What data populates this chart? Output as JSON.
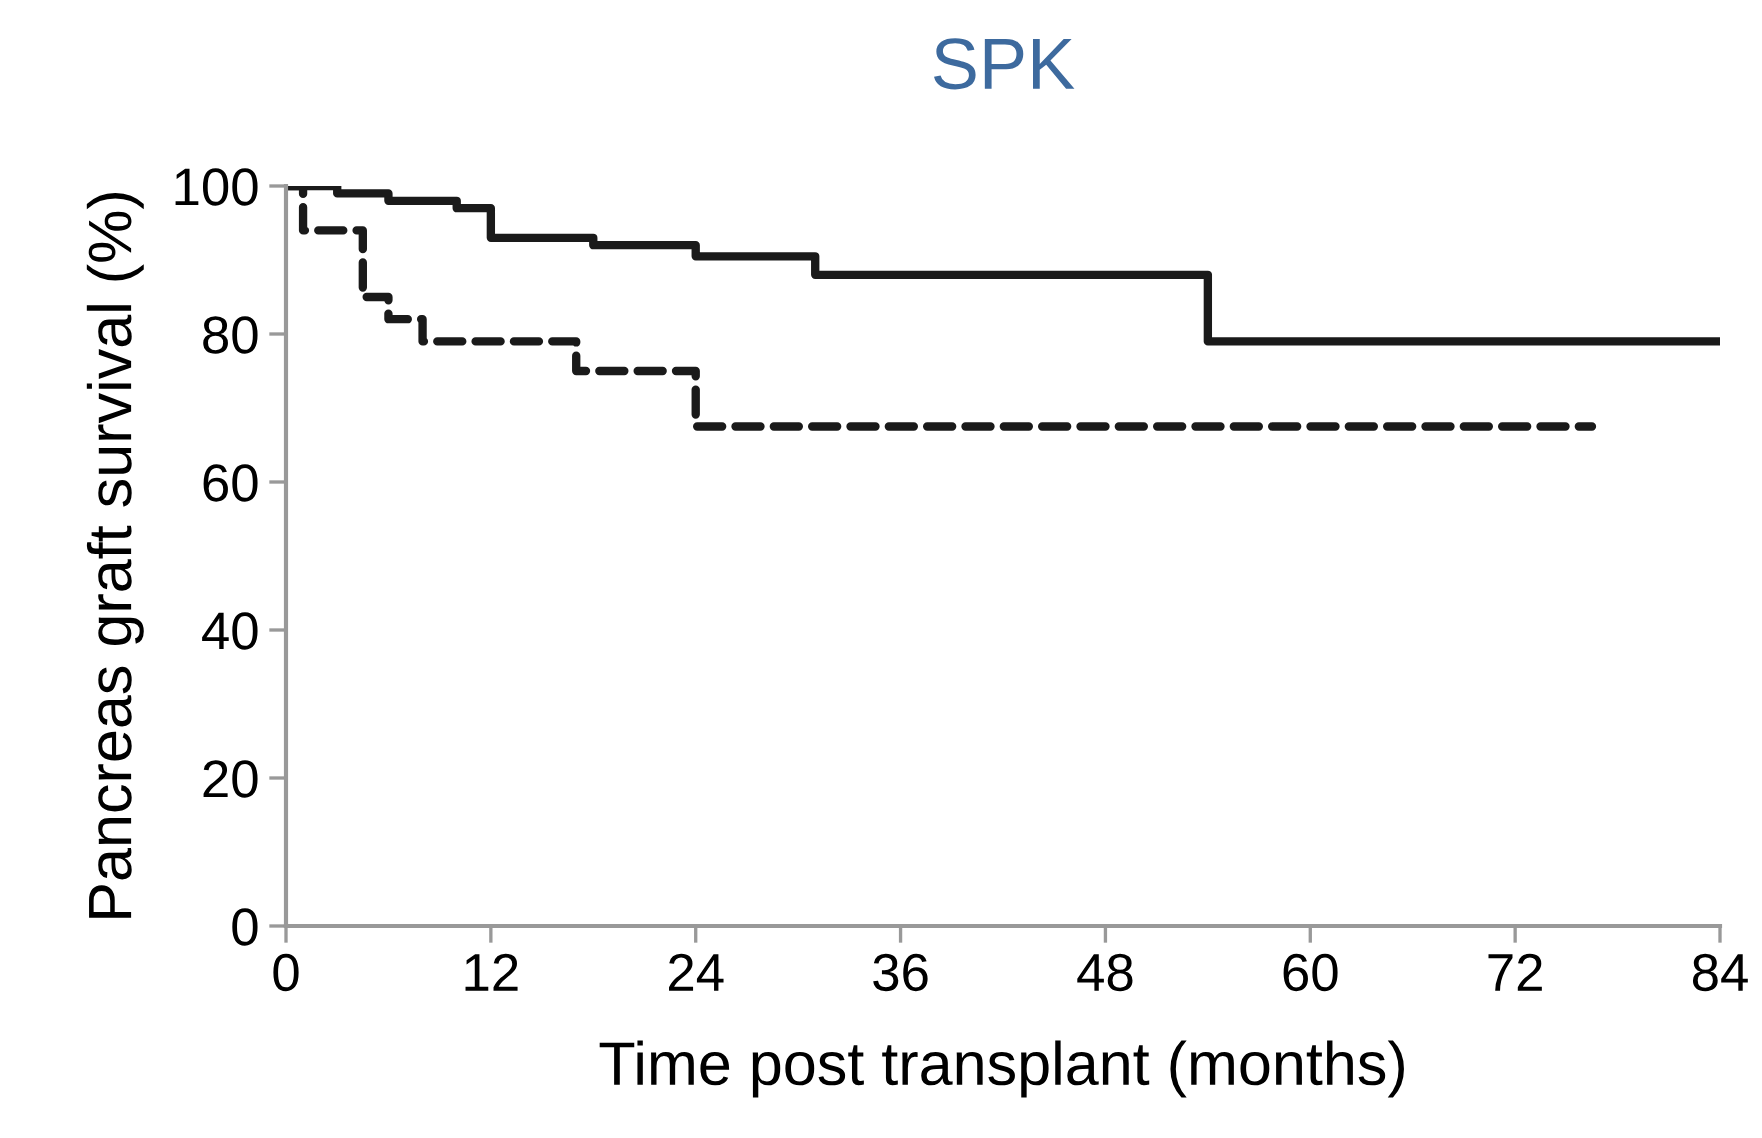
{
  "chart_data": {
    "type": "step",
    "title": "SPK",
    "xlabel": "Time post transplant (months)",
    "ylabel": "Pancreas graft survival (%)",
    "series": [
      {
        "x": [
          0,
          3,
          6,
          10,
          12,
          18,
          24,
          31,
          54,
          84
        ],
        "values": [
          100,
          99,
          98,
          97,
          93,
          92,
          90.5,
          88,
          79,
          79
        ],
        "color": "#1a1a1a",
        "line_style": "solid"
      },
      {
        "x": [
          0,
          1,
          4.5,
          6,
          8,
          17,
          24,
          76.5
        ],
        "values": [
          100,
          94,
          85,
          82,
          79,
          75,
          67.5,
          67.5
        ],
        "color": "#1a1a1a",
        "line_style": "dashed"
      }
    ],
    "xlim": [
      0,
      84
    ],
    "xticks": [
      0,
      12,
      24,
      36,
      48,
      60,
      72,
      84
    ],
    "ylim": [
      0,
      100
    ],
    "yticks": [
      0,
      20,
      40,
      60,
      80,
      100
    ],
    "grid": false,
    "legend": false
  }
}
